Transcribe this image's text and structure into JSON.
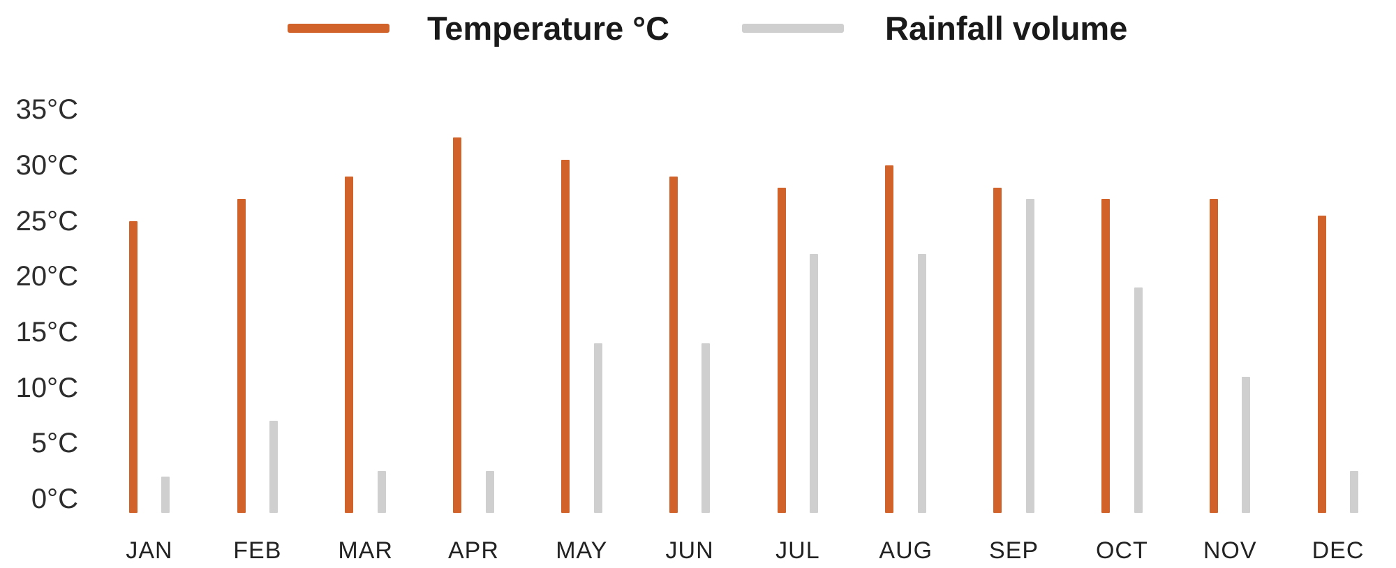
{
  "chart_data": {
    "type": "bar",
    "title": "",
    "xlabel": "",
    "ylabel": "",
    "categories": [
      "JAN",
      "FEB",
      "MAR",
      "APR",
      "MAY",
      "JUN",
      "JUL",
      "AUG",
      "SEP",
      "OCT",
      "NOV",
      "DEC"
    ],
    "series": [
      {
        "name": "Temperature °C",
        "color": "#d0622a",
        "values": [
          25,
          27,
          29,
          32.5,
          30.5,
          29,
          28,
          30,
          28,
          27,
          27,
          25.5
        ]
      },
      {
        "name": "Rainfall volume",
        "color": "#cfcfcf",
        "values": [
          2,
          7,
          2.5,
          2.5,
          14,
          14,
          22,
          22,
          27,
          19,
          11,
          2.5
        ]
      }
    ],
    "yticks": [
      {
        "value": 35,
        "label": "35°C"
      },
      {
        "value": 30,
        "label": "30°C"
      },
      {
        "value": 25,
        "label": "25°C"
      },
      {
        "value": 20,
        "label": "20°C"
      },
      {
        "value": 15,
        "label": "15°C"
      },
      {
        "value": 10,
        "label": "10°C"
      },
      {
        "value": 5,
        "label": "5°C"
      },
      {
        "value": 0,
        "label": "0°C"
      }
    ],
    "ylim": [
      0,
      35
    ],
    "grid": false,
    "legend_position": "top"
  }
}
